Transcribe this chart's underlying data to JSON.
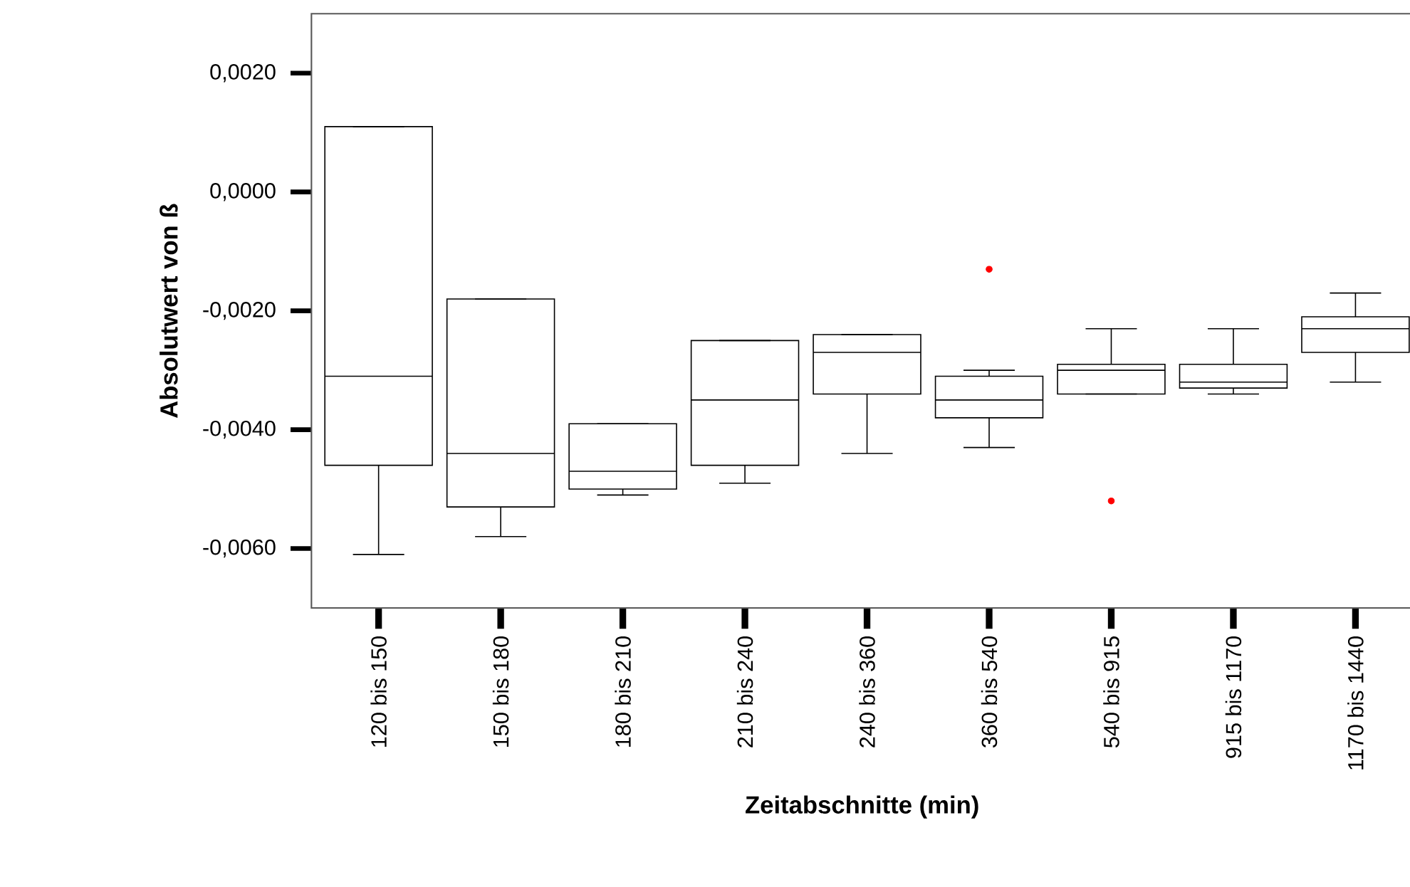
{
  "chart_data": {
    "type": "box",
    "xlabel": "Zeitabschnitte (min)",
    "ylabel": "Absolutwert von ß",
    "categories": [
      "120 bis 150",
      "150 bis 180",
      "180 bis 210",
      "210 bis 240",
      "240 bis 360",
      "360 bis 540",
      "540 bis 915",
      "915 bis 1170",
      "1170 bis 1440"
    ],
    "ylim": [
      -0.007,
      0.003
    ],
    "yticks": [
      {
        "value": -0.006,
        "label": "-0,0060"
      },
      {
        "value": -0.004,
        "label": "-0,0040"
      },
      {
        "value": -0.002,
        "label": "-0,0020"
      },
      {
        "value": 0.0,
        "label": "0,0000"
      },
      {
        "value": 0.002,
        "label": "0,0020"
      }
    ],
    "boxes": [
      {
        "low": -0.0061,
        "q1": -0.0046,
        "median": -0.0031,
        "q3": 0.0011,
        "high": 0.0011
      },
      {
        "low": -0.0058,
        "q1": -0.0053,
        "median": -0.0044,
        "q3": -0.0018,
        "high": -0.0018
      },
      {
        "low": -0.0051,
        "q1": -0.005,
        "median": -0.0047,
        "q3": -0.0039,
        "high": -0.0039
      },
      {
        "low": -0.0049,
        "q1": -0.0046,
        "median": -0.0035,
        "q3": -0.0025,
        "high": -0.0025
      },
      {
        "low": -0.0044,
        "q1": -0.0034,
        "median": -0.0027,
        "q3": -0.0024,
        "high": -0.0024
      },
      {
        "low": -0.0043,
        "q1": -0.0038,
        "median": -0.0035,
        "q3": -0.0031,
        "high": -0.003,
        "outliers": [
          -0.0013
        ]
      },
      {
        "low": -0.0034,
        "q1": -0.0034,
        "median": -0.003,
        "q3": -0.0029,
        "high": -0.0023,
        "outliers": [
          -0.0052
        ]
      },
      {
        "low": -0.0034,
        "q1": -0.0033,
        "median": -0.0032,
        "q3": -0.0029,
        "high": -0.0023
      },
      {
        "low": -0.0032,
        "q1": -0.0027,
        "median": -0.0023,
        "q3": -0.0021,
        "high": -0.0017
      }
    ]
  }
}
